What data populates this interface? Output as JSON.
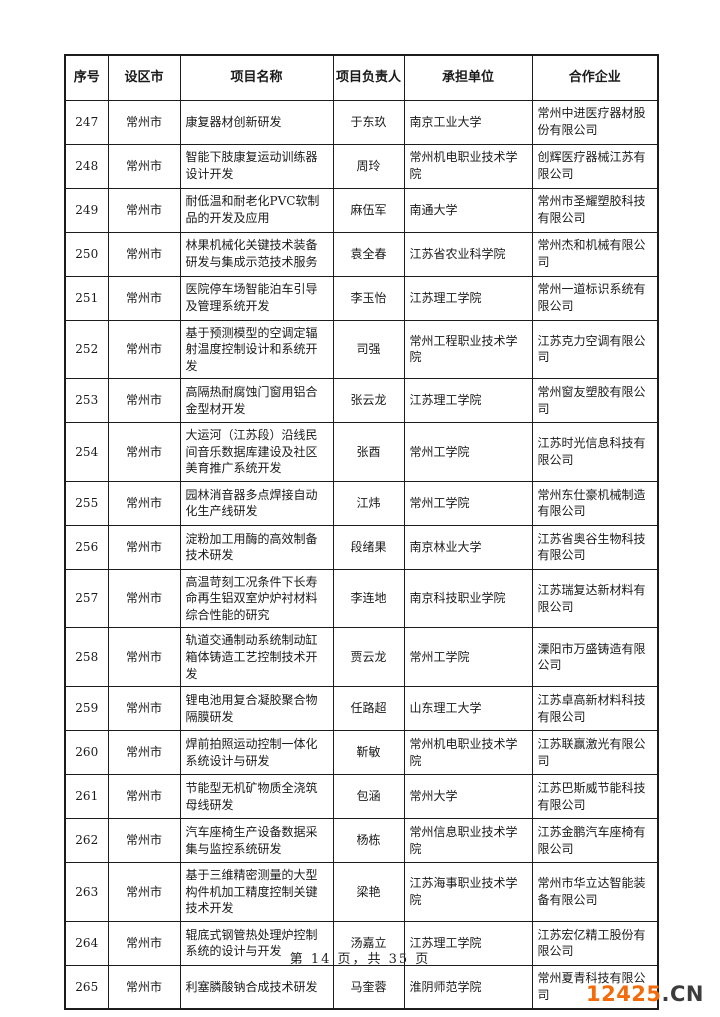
{
  "table": {
    "headers": [
      "序号",
      "设区市",
      "项目名称",
      "项目负责人",
      "承担单位",
      "合作企业"
    ],
    "rows": [
      {
        "no": "247",
        "city": "常州市",
        "project": "康复器材创新研发",
        "leader": "于东玖",
        "unit": "南京工业大学",
        "partner": "常州中进医疗器材股份有限公司"
      },
      {
        "no": "248",
        "city": "常州市",
        "project": "智能下肢康复运动训练器设计开发",
        "leader": "周玲",
        "unit": "常州机电职业技术学院",
        "partner": "创辉医疗器械江苏有限公司"
      },
      {
        "no": "249",
        "city": "常州市",
        "project": "耐低温和耐老化PVC软制品的开发及应用",
        "leader": "麻伍军",
        "unit": "南通大学",
        "partner": "常州市圣耀塑胶科技有限公司"
      },
      {
        "no": "250",
        "city": "常州市",
        "project": "林果机械化关键技术装备研发与集成示范技术服务",
        "leader": "袁全春",
        "unit": "江苏省农业科学院",
        "partner": "常州杰和机械有限公司"
      },
      {
        "no": "251",
        "city": "常州市",
        "project": "医院停车场智能泊车引导及管理系统开发",
        "leader": "李玉怡",
        "unit": "江苏理工学院",
        "partner": "常州一道标识系统有限公司"
      },
      {
        "no": "252",
        "city": "常州市",
        "project": "基于预测模型的空调定辐射温度控制设计和系统开发",
        "leader": "司强",
        "unit": "常州工程职业技术学院",
        "partner": "江苏克力空调有限公司"
      },
      {
        "no": "253",
        "city": "常州市",
        "project": "高隔热耐腐蚀门窗用铝合金型材开发",
        "leader": "张云龙",
        "unit": "江苏理工学院",
        "partner": "常州窗友塑胶有限公司"
      },
      {
        "no": "254",
        "city": "常州市",
        "project": "大运河（江苏段）沿线民间音乐数据库建设及社区美育推广系统开发",
        "leader": "张酉",
        "unit": "常州工学院",
        "partner": "江苏时光信息科技有限公司"
      },
      {
        "no": "255",
        "city": "常州市",
        "project": "园林消音器多点焊接自动化生产线研发",
        "leader": "江炜",
        "unit": "常州工学院",
        "partner": "常州东仕豪机械制造有限公司"
      },
      {
        "no": "256",
        "city": "常州市",
        "project": "淀粉加工用酶的高效制备技术研发",
        "leader": "段绪果",
        "unit": "南京林业大学",
        "partner": "江苏省奥谷生物科技有限公司"
      },
      {
        "no": "257",
        "city": "常州市",
        "project": "高温苛刻工况条件下长寿命再生铝双室炉炉衬材料综合性能的研究",
        "leader": "李连地",
        "unit": "南京科技职业学院",
        "partner": "江苏瑞复达新材料有限公司"
      },
      {
        "no": "258",
        "city": "常州市",
        "project": "轨道交通制动系统制动缸箱体铸造工艺控制技术开发",
        "leader": "贾云龙",
        "unit": "常州工学院",
        "partner": "溧阳市万盛铸造有限公司"
      },
      {
        "no": "259",
        "city": "常州市",
        "project": "锂电池用复合凝胶聚合物隔膜研发",
        "leader": "任路超",
        "unit": "山东理工大学",
        "partner": "江苏卓高新材料科技有限公司"
      },
      {
        "no": "260",
        "city": "常州市",
        "project": "焊前拍照运动控制一体化系统设计与研发",
        "leader": "靳敏",
        "unit": "常州机电职业技术学院",
        "partner": "江苏联赢激光有限公司"
      },
      {
        "no": "261",
        "city": "常州市",
        "project": "节能型无机矿物质全浇筑母线研发",
        "leader": "包涵",
        "unit": "常州大学",
        "partner": "江苏巴斯威节能科技有限公司"
      },
      {
        "no": "262",
        "city": "常州市",
        "project": "汽车座椅生产设备数据采集与监控系统研发",
        "leader": "杨栋",
        "unit": "常州信息职业技术学院",
        "partner": "江苏金鹏汽车座椅有限公司"
      },
      {
        "no": "263",
        "city": "常州市",
        "project": "基于三维精密测量的大型构件机加工精度控制关键技术开发",
        "leader": "梁艳",
        "unit": "江苏海事职业技术学院",
        "partner": "常州市华立达智能装备有限公司"
      },
      {
        "no": "264",
        "city": "常州市",
        "project": "辊底式钢管热处理炉控制系统的设计与开发",
        "leader": "汤嘉立",
        "unit": "江苏理工学院",
        "partner": "江苏宏亿精工股份有限公司"
      },
      {
        "no": "265",
        "city": "常州市",
        "project": "利塞膦酸钠合成技术研发",
        "leader": "马奎蓉",
        "unit": "淮阴师范学院",
        "partner": "常州夏青科技有限公司"
      }
    ]
  },
  "footer": {
    "page_text": "第 14 页，共 35 页"
  },
  "watermark": {
    "number": "12425",
    "suffix": ".CN",
    "number_color": "#f26c0c",
    "suffix_color": "#3c3c3c"
  }
}
